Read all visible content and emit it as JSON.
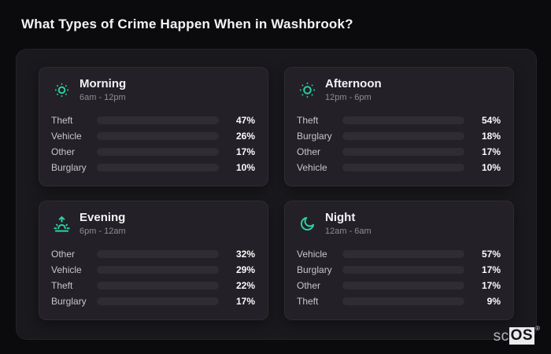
{
  "page": {
    "title": "What Types of Crime Happen When in Washbrook?"
  },
  "colors": {
    "Theft": "#a158e8",
    "Vehicle": "#3b82f6",
    "Other": "#6b7691",
    "Burglary": "#e2771e",
    "accent": "#2bd4a4",
    "bar_track": "#2e2d33",
    "panel_bg": "#232127",
    "container_bg": "#1a191d",
    "page_bg": "#0b0a0d"
  },
  "chart_data": {
    "type": "bar",
    "orientation": "horizontal",
    "unit": "%",
    "xlim": [
      0,
      100
    ],
    "grid": false,
    "legend": false,
    "panels": [
      {
        "title": "Morning",
        "subtitle": "6am - 12pm",
        "icon": "sun-dim-icon",
        "categories": [
          "Theft",
          "Vehicle",
          "Other",
          "Burglary"
        ],
        "values": [
          47,
          26,
          17,
          10
        ],
        "value_labels": [
          "47%",
          "26%",
          "17%",
          "10%"
        ]
      },
      {
        "title": "Afternoon",
        "subtitle": "12pm - 6pm",
        "icon": "sun-icon",
        "categories": [
          "Theft",
          "Burglary",
          "Other",
          "Vehicle"
        ],
        "values": [
          54,
          18,
          17,
          10
        ],
        "value_labels": [
          "54%",
          "18%",
          "17%",
          "10%"
        ]
      },
      {
        "title": "Evening",
        "subtitle": "6pm - 12am",
        "icon": "sunrise-icon",
        "categories": [
          "Other",
          "Vehicle",
          "Theft",
          "Burglary"
        ],
        "values": [
          32,
          29,
          22,
          17
        ],
        "value_labels": [
          "32%",
          "29%",
          "22%",
          "17%"
        ]
      },
      {
        "title": "Night",
        "subtitle": "12am - 6am",
        "icon": "moon-icon",
        "categories": [
          "Vehicle",
          "Burglary",
          "Other",
          "Theft"
        ],
        "values": [
          57,
          17,
          17,
          9
        ],
        "value_labels": [
          "57%",
          "17%",
          "17%",
          "9%"
        ]
      }
    ]
  },
  "watermark": {
    "prefix": "sc",
    "boxed": "OS",
    "mark": "®"
  }
}
